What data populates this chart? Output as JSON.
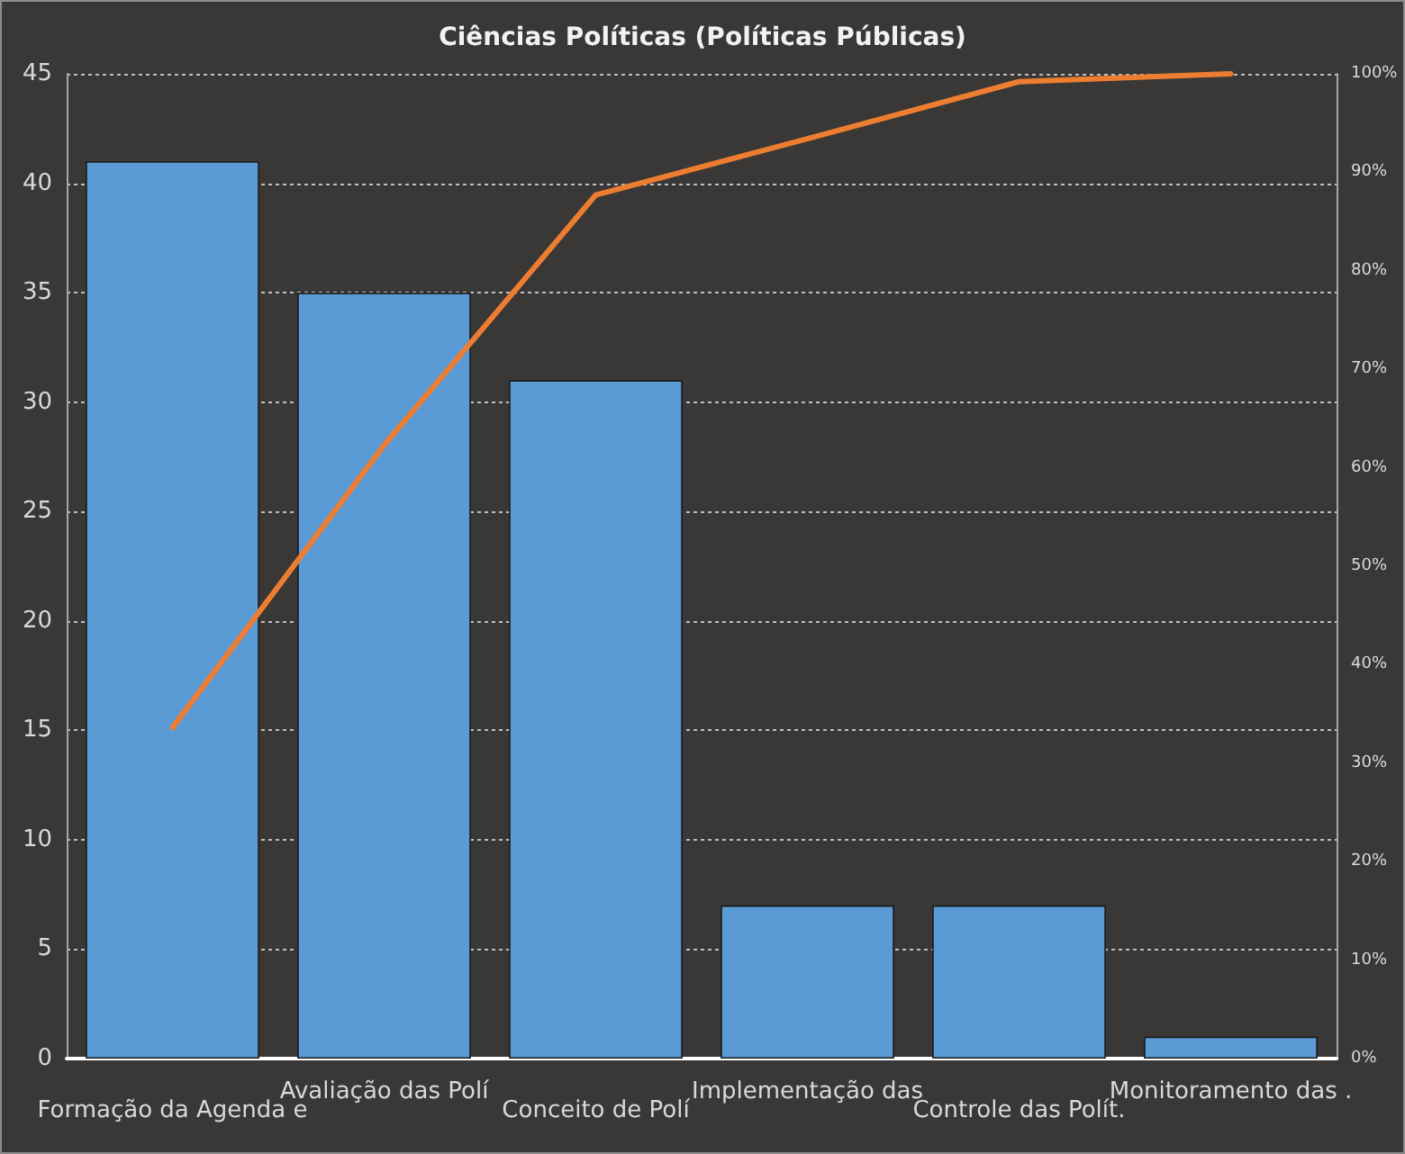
{
  "chart_data": {
    "type": "bar",
    "title": "Ciências Políticas (Políticas Públicas)",
    "categories": [
      "Formação da Agenda e",
      "Avaliação das Polí",
      "Conceito de Polí",
      "Implementação das",
      "Controle das Polít.",
      "Monitoramento das ."
    ],
    "series": [
      {
        "color": "#5b9bd5",
        "values": [
          41,
          35,
          31,
          7,
          7,
          1
        ]
      },
      {
        "type": "line",
        "axis": "y2",
        "color": "#ed7d31",
        "values": [
          33.6,
          62.3,
          87.7,
          93.4,
          99.2,
          100
        ]
      }
    ],
    "ylim": [
      0,
      45
    ],
    "yticks": [
      0,
      5,
      10,
      15,
      20,
      25,
      30,
      35,
      40,
      45
    ],
    "y2lim": [
      0,
      100
    ],
    "y2ticks": [
      {
        "value": 0,
        "label": "0%"
      },
      {
        "value": 10,
        "label": "10%"
      },
      {
        "value": 20,
        "label": "20%"
      },
      {
        "value": 30,
        "label": "30%"
      },
      {
        "value": 40,
        "label": "40%"
      },
      {
        "value": 50,
        "label": "50%"
      },
      {
        "value": 60,
        "label": "60%"
      },
      {
        "value": 70,
        "label": "70%"
      },
      {
        "value": 80,
        "label": "80%"
      },
      {
        "value": 90,
        "label": "90%"
      },
      {
        "value": 100,
        "label": "100%"
      }
    ],
    "grid": "y",
    "marker": "none"
  }
}
